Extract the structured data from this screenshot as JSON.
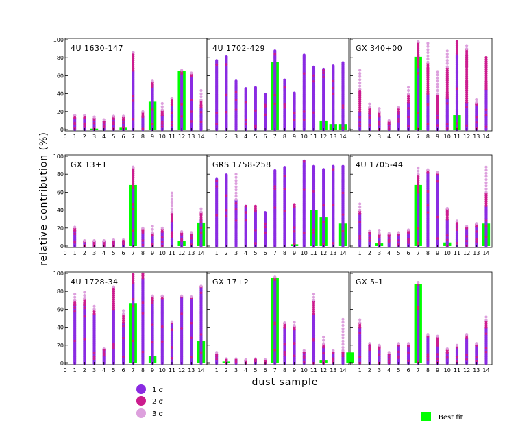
{
  "chart_data": {
    "type": "scatter",
    "xlabel": "dust sample",
    "ylabel": "relative contribution (%)",
    "x_ticks": [
      0,
      1,
      2,
      3,
      4,
      5,
      6,
      7,
      8,
      9,
      10,
      11,
      12,
      13,
      14
    ],
    "y_ticks": [
      0,
      20,
      40,
      60,
      80,
      100
    ],
    "ylim": [
      0,
      100
    ],
    "xlim": [
      0,
      14.6
    ],
    "grid": false,
    "legend": {
      "placement": "bottom",
      "entries": [
        {
          "label": "1 σ",
          "color": "#8a2be2"
        },
        {
          "label": "2 σ",
          "color": "#cc1c8e"
        },
        {
          "label": "3 σ",
          "color": "#dda0dd"
        }
      ],
      "best_fit": {
        "label": "Best fit",
        "color": "#00ff00"
      }
    },
    "panels": [
      {
        "title": "4U 1630-147",
        "best_fit": [
          0,
          0,
          0,
          1,
          0,
          0,
          2,
          0,
          0,
          31,
          0,
          0,
          65,
          0,
          0
        ],
        "range_1sigma": [
          null,
          [
            0,
            13
          ],
          [
            0,
            13
          ],
          [
            0,
            12
          ],
          [
            0,
            9
          ],
          [
            0,
            12
          ],
          [
            0,
            11
          ],
          [
            0,
            66
          ],
          [
            0,
            15
          ],
          [
            0,
            50
          ],
          [
            0,
            16
          ],
          [
            0,
            28
          ],
          [
            0,
            63
          ],
          [
            0,
            60
          ],
          [
            0,
            25
          ]
        ],
        "range_2sigma": [
          null,
          16,
          16,
          14,
          11,
          15,
          15,
          86,
          20,
          54,
          22,
          35,
          66,
          63,
          33
        ],
        "range_3sigma": [
          null,
          18,
          18,
          16,
          12,
          17,
          17,
          88,
          22,
          56,
          30,
          38,
          68,
          65,
          44
        ]
      },
      {
        "title": "4U 1702-429",
        "best_fit": [
          0,
          0,
          0,
          0,
          0,
          0,
          0,
          75,
          0,
          0,
          0,
          0,
          10,
          6,
          6
        ],
        "range_1sigma": [
          null,
          [
            0,
            78
          ],
          [
            0,
            82
          ],
          [
            0,
            55
          ],
          [
            0,
            46
          ],
          [
            0,
            47
          ],
          [
            0,
            40
          ],
          [
            0,
            88
          ],
          [
            0,
            56
          ],
          [
            0,
            41
          ],
          [
            0,
            84
          ],
          [
            0,
            70
          ],
          [
            0,
            68
          ],
          [
            0,
            72
          ],
          [
            0,
            75
          ]
        ],
        "range_2sigma": [
          null,
          null,
          null,
          null,
          null,
          null,
          null,
          null,
          null,
          null,
          null,
          null,
          null,
          null,
          null
        ],
        "range_3sigma": [
          null,
          null,
          null,
          null,
          null,
          null,
          null,
          null,
          null,
          null,
          null,
          null,
          null,
          null,
          null
        ]
      },
      {
        "title": "GX 340+00",
        "best_fit": [
          0,
          0,
          0,
          0,
          0,
          0,
          0,
          81,
          0,
          0,
          0,
          16,
          0,
          0,
          0
        ],
        "range_1sigma": [
          null,
          [
            0,
            20
          ],
          [
            0,
            18
          ],
          [
            0,
            15
          ],
          [
            0,
            6
          ],
          [
            0,
            20
          ],
          [
            0,
            30
          ],
          [
            0,
            70
          ],
          [
            0,
            40
          ],
          [
            0,
            20
          ],
          [
            0,
            35
          ],
          [
            0,
            85
          ],
          [
            0,
            30
          ],
          [
            0,
            28
          ],
          [
            0,
            45
          ]
        ],
        "range_2sigma": [
          null,
          45,
          25,
          20,
          10,
          25,
          40,
          98,
          75,
          40,
          70,
          100,
          90,
          30,
          82
        ],
        "range_3sigma": [
          null,
          68,
          30,
          25,
          12,
          28,
          48,
          100,
          98,
          65,
          90,
          100,
          95,
          35,
          50
        ]
      },
      {
        "title": "GX 13+1",
        "best_fit": [
          0,
          0,
          0,
          0,
          0,
          0,
          0,
          68,
          0,
          0,
          0,
          0,
          6,
          0,
          26
        ],
        "range_1sigma": [
          null,
          [
            0,
            17
          ],
          [
            0,
            5
          ],
          [
            0,
            5
          ],
          [
            0,
            5
          ],
          [
            0,
            6
          ],
          [
            0,
            6
          ],
          [
            0,
            65
          ],
          [
            0,
            17
          ],
          [
            0,
            12
          ],
          [
            0,
            16
          ],
          [
            0,
            28
          ],
          [
            0,
            14
          ],
          [
            0,
            13
          ],
          [
            0,
            30
          ]
        ],
        "range_2sigma": [
          null,
          21,
          6,
          6,
          6,
          7,
          7,
          88,
          20,
          15,
          20,
          38,
          16,
          15,
          38
        ],
        "range_3sigma": [
          null,
          22,
          7,
          7,
          7,
          8,
          8,
          90,
          22,
          22,
          22,
          60,
          18,
          16,
          42
        ]
      },
      {
        "title": "GRS 1758-258",
        "best_fit": [
          0,
          0,
          0,
          0,
          0,
          0,
          0,
          0,
          0,
          2,
          0,
          40,
          32,
          0,
          25
        ],
        "range_1sigma": [
          null,
          [
            0,
            75
          ],
          [
            0,
            80
          ],
          [
            0,
            52
          ],
          [
            0,
            45
          ],
          [
            0,
            40
          ],
          [
            0,
            38
          ],
          [
            0,
            85
          ],
          [
            0,
            88
          ],
          [
            0,
            44
          ],
          [
            0,
            95
          ],
          [
            0,
            90
          ],
          [
            0,
            86
          ],
          [
            0,
            89
          ],
          [
            0,
            90
          ]
        ],
        "range_2sigma": [
          null,
          null,
          null,
          null,
          null,
          45,
          null,
          null,
          null,
          48,
          null,
          null,
          null,
          null,
          null
        ],
        "range_3sigma": [
          null,
          null,
          null,
          82,
          null,
          null,
          null,
          null,
          null,
          null,
          null,
          null,
          null,
          null,
          null
        ]
      },
      {
        "title": "4U 1705-44",
        "best_fit": [
          0,
          0,
          0,
          3,
          0,
          0,
          0,
          68,
          0,
          0,
          4,
          0,
          0,
          0,
          25
        ],
        "range_1sigma": [
          null,
          [
            0,
            36
          ],
          [
            0,
            15
          ],
          [
            0,
            12
          ],
          [
            0,
            12
          ],
          [
            0,
            13
          ],
          [
            0,
            15
          ],
          [
            0,
            60
          ],
          [
            0,
            82
          ],
          [
            0,
            80
          ],
          [
            0,
            30
          ],
          [
            0,
            25
          ],
          [
            0,
            20
          ],
          [
            0,
            22
          ],
          [
            0,
            45
          ]
        ],
        "range_2sigma": [
          null,
          40,
          17,
          14,
          14,
          15,
          18,
          80,
          85,
          82,
          42,
          28,
          22,
          25,
          60
        ],
        "range_3sigma": [
          null,
          50,
          20,
          18,
          16,
          17,
          20,
          88,
          88,
          85,
          45,
          30,
          24,
          28,
          90
        ]
      },
      {
        "title": "4U 1728-34",
        "best_fit": [
          0,
          0,
          0,
          0,
          0,
          0,
          0,
          67,
          0,
          8,
          0,
          0,
          0,
          0,
          25
        ],
        "range_1sigma": [
          null,
          [
            0,
            65
          ],
          [
            0,
            65
          ],
          [
            0,
            55
          ],
          [
            0,
            15
          ],
          [
            0,
            60
          ],
          [
            0,
            45
          ],
          [
            0,
            90
          ],
          [
            0,
            95
          ],
          [
            0,
            70
          ],
          [
            0,
            72
          ],
          [
            0,
            45
          ],
          [
            0,
            74
          ],
          [
            0,
            73
          ],
          [
            0,
            85
          ]
        ],
        "range_2sigma": [
          null,
          70,
          72,
          60,
          16,
          85,
          55,
          100,
          100,
          75,
          75,
          46,
          75,
          74,
          86
        ],
        "range_3sigma": [
          null,
          77,
          80,
          65,
          17,
          88,
          60,
          100,
          100,
          78,
          78,
          47,
          76,
          75,
          87
        ]
      },
      {
        "title": "GX 17+2",
        "best_fit": [
          0,
          0,
          2,
          0,
          0,
          0,
          0,
          95,
          0,
          0,
          0,
          0,
          3,
          0,
          0
        ],
        "range_1sigma": [
          null,
          [
            0,
            10
          ],
          [
            0,
            4
          ],
          [
            0,
            4
          ],
          [
            0,
            3
          ],
          [
            0,
            4
          ],
          [
            0,
            3
          ],
          [
            0,
            93
          ],
          [
            0,
            40
          ],
          [
            0,
            38
          ],
          [
            0,
            12
          ],
          [
            0,
            55
          ],
          [
            0,
            18
          ],
          [
            0,
            12
          ],
          [
            0,
            12
          ]
        ],
        "range_2sigma": [
          null,
          12,
          5,
          5,
          4,
          5,
          4,
          96,
          45,
          42,
          14,
          70,
          22,
          14,
          14
        ],
        "range_3sigma": [
          null,
          14,
          6,
          6,
          5,
          6,
          5,
          98,
          48,
          48,
          16,
          80,
          30,
          16,
          50
        ]
      },
      {
        "title": "GX 5-1",
        "best_fit": [
          12,
          0,
          0,
          0,
          0,
          0,
          0,
          88,
          0,
          0,
          0,
          0,
          0,
          0,
          0
        ],
        "range_1sigma": [
          null,
          [
            0,
            40
          ],
          [
            0,
            20
          ],
          [
            0,
            17
          ],
          [
            0,
            10
          ],
          [
            0,
            20
          ],
          [
            0,
            20
          ],
          [
            0,
            88
          ],
          [
            0,
            30
          ],
          [
            0,
            20
          ],
          [
            0,
            12
          ],
          [
            0,
            18
          ],
          [
            0,
            28
          ],
          [
            0,
            20
          ],
          [
            0,
            40
          ]
        ],
        "range_2sigma": [
          null,
          45,
          22,
          20,
          12,
          22,
          22,
          90,
          32,
          30,
          16,
          20,
          32,
          22,
          48
        ],
        "range_3sigma": [
          null,
          50,
          25,
          22,
          14,
          24,
          24,
          92,
          35,
          32,
          18,
          22,
          35,
          24,
          52
        ]
      }
    ]
  }
}
